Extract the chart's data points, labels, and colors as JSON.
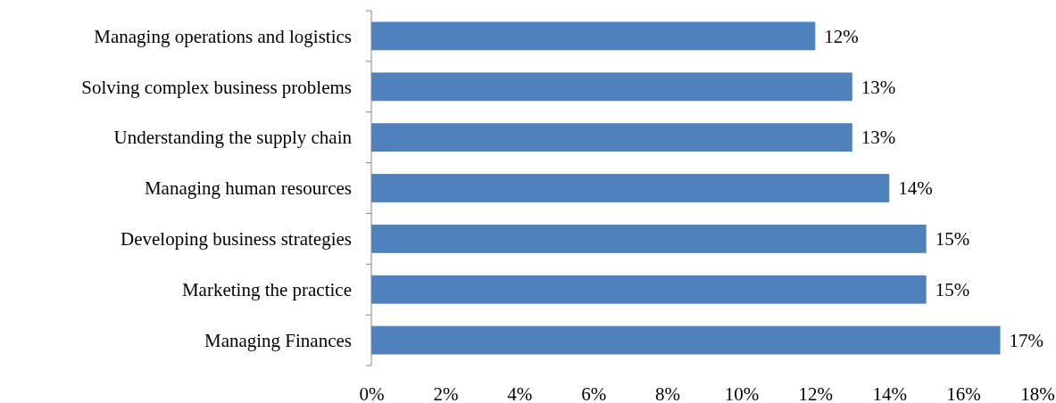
{
  "chart_data": {
    "type": "bar",
    "orientation": "horizontal",
    "categories": [
      "Managing operations and logistics",
      "Solving complex business problems",
      "Understanding the supply chain",
      "Managing human resources",
      "Developing business strategies",
      "Marketing the practice",
      "Managing Finances"
    ],
    "values": [
      12,
      13,
      13,
      14,
      15,
      15,
      17
    ],
    "value_labels": [
      "12%",
      "13%",
      "13%",
      "14%",
      "15%",
      "15%",
      "17%"
    ],
    "color": "#4f81bd",
    "xlim": [
      0,
      18
    ],
    "xticks": [
      {
        "value": 0,
        "label": "0%"
      },
      {
        "value": 2,
        "label": "2%"
      },
      {
        "value": 4,
        "label": "4%"
      },
      {
        "value": 6,
        "label": "6%"
      },
      {
        "value": 8,
        "label": "8%"
      },
      {
        "value": 10,
        "label": "10%"
      },
      {
        "value": 12,
        "label": "12%"
      },
      {
        "value": 14,
        "label": "14%"
      },
      {
        "value": 16,
        "label": "16%"
      },
      {
        "value": 18,
        "label": "18%"
      }
    ],
    "grid": false
  }
}
